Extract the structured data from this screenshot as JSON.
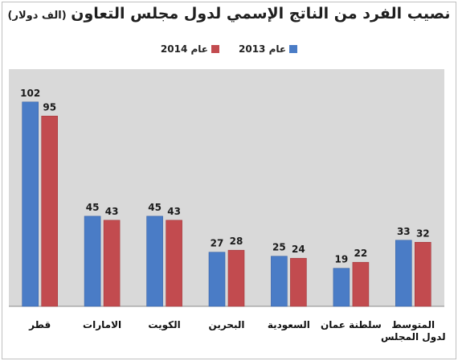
{
  "chart_data": {
    "type": "bar",
    "title": "نصيب الفرد من الناتج الإسمي لدول مجلس التعاون",
    "subtitle": "(الف دولار)",
    "categories": [
      "قطر",
      "الامارات",
      "الكويت",
      "البحرين",
      "السعودية",
      "سلطنة عمان",
      "المتوسط لدول المجلس"
    ],
    "series": [
      {
        "name": "عام 2013",
        "color": "#4a7cc6",
        "values": [
          102,
          45,
          45,
          27,
          25,
          19,
          33
        ]
      },
      {
        "name": "عام 2014",
        "color": "#c24b4f",
        "values": [
          95,
          43,
          43,
          28,
          24,
          22,
          32
        ]
      }
    ],
    "ylim": [
      0,
      120
    ],
    "legend": "top",
    "grid": false,
    "plot_background": "#d9d9d9"
  }
}
